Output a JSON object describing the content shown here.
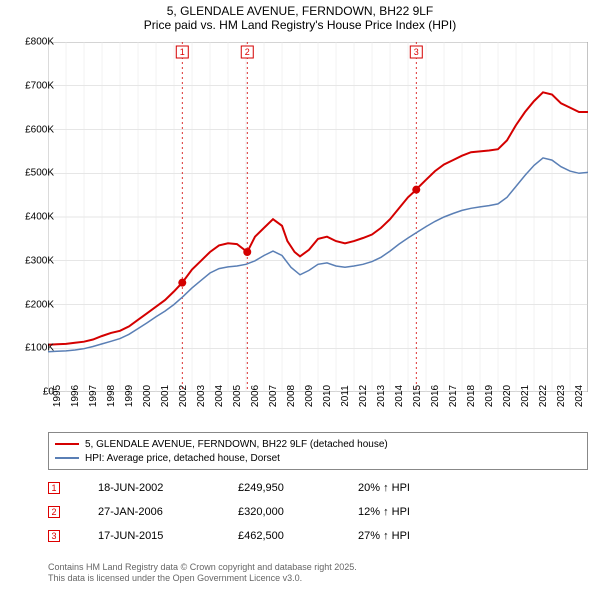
{
  "title_line1": "5, GLENDALE AVENUE, FERNDOWN, BH22 9LF",
  "title_line2": "Price paid vs. HM Land Registry's House Price Index (HPI)",
  "chart": {
    "type": "line",
    "background_color": "#ffffff",
    "plot_border_color": "#888888",
    "grid_color_major": "#cccccc",
    "grid_color_minor": "#e6e6e6",
    "x_min": 1995,
    "x_max": 2025,
    "y_min": 0,
    "y_max": 800000,
    "y_tick_step": 100000,
    "y_tick_labels": [
      "£0",
      "£100K",
      "£200K",
      "£300K",
      "£400K",
      "£500K",
      "£600K",
      "£700K",
      "£800K"
    ],
    "x_ticks": [
      1995,
      1996,
      1997,
      1998,
      1999,
      2000,
      2001,
      2002,
      2003,
      2004,
      2005,
      2006,
      2007,
      2008,
      2009,
      2010,
      2011,
      2012,
      2013,
      2014,
      2015,
      2016,
      2017,
      2018,
      2019,
      2020,
      2021,
      2022,
      2023,
      2024
    ],
    "label_fontsize": 10,
    "series": [
      {
        "name": "5, GLENDALE AVENUE, FERNDOWN, BH22 9LF (detached house)",
        "color": "#d40000",
        "width": 2,
        "data": [
          [
            1995.0,
            108000
          ],
          [
            1995.5,
            109000
          ],
          [
            1996.0,
            110000
          ],
          [
            1996.5,
            112500
          ],
          [
            1997.0,
            115000
          ],
          [
            1997.5,
            120000
          ],
          [
            1998.0,
            128000
          ],
          [
            1998.5,
            135000
          ],
          [
            1999.0,
            140000
          ],
          [
            1999.5,
            150000
          ],
          [
            2000.0,
            165000
          ],
          [
            2000.5,
            180000
          ],
          [
            2001.0,
            195000
          ],
          [
            2001.5,
            210000
          ],
          [
            2002.0,
            230000
          ],
          [
            2002.46,
            249950
          ],
          [
            2003.0,
            280000
          ],
          [
            2003.5,
            300000
          ],
          [
            2004.0,
            320000
          ],
          [
            2004.5,
            335000
          ],
          [
            2005.0,
            340000
          ],
          [
            2005.5,
            338000
          ],
          [
            2006.07,
            320000
          ],
          [
            2006.5,
            355000
          ],
          [
            2007.0,
            375000
          ],
          [
            2007.5,
            395000
          ],
          [
            2008.0,
            380000
          ],
          [
            2008.3,
            345000
          ],
          [
            2008.7,
            320000
          ],
          [
            2009.0,
            310000
          ],
          [
            2009.5,
            325000
          ],
          [
            2010.0,
            350000
          ],
          [
            2010.5,
            355000
          ],
          [
            2011.0,
            345000
          ],
          [
            2011.5,
            340000
          ],
          [
            2012.0,
            345000
          ],
          [
            2012.5,
            352000
          ],
          [
            2013.0,
            360000
          ],
          [
            2013.5,
            375000
          ],
          [
            2014.0,
            395000
          ],
          [
            2014.5,
            420000
          ],
          [
            2015.0,
            445000
          ],
          [
            2015.46,
            462500
          ],
          [
            2015.5,
            465000
          ],
          [
            2016.0,
            485000
          ],
          [
            2016.5,
            505000
          ],
          [
            2017.0,
            520000
          ],
          [
            2017.5,
            530000
          ],
          [
            2018.0,
            540000
          ],
          [
            2018.5,
            548000
          ],
          [
            2019.0,
            550000
          ],
          [
            2019.5,
            552000
          ],
          [
            2020.0,
            555000
          ],
          [
            2020.5,
            575000
          ],
          [
            2021.0,
            610000
          ],
          [
            2021.5,
            640000
          ],
          [
            2022.0,
            665000
          ],
          [
            2022.5,
            685000
          ],
          [
            2023.0,
            680000
          ],
          [
            2023.5,
            660000
          ],
          [
            2024.0,
            650000
          ],
          [
            2024.5,
            640000
          ],
          [
            2025.0,
            640000
          ]
        ]
      },
      {
        "name": "HPI: Average price, detached house, Dorset",
        "color": "#5a7fb5",
        "width": 1.5,
        "data": [
          [
            1995.0,
            92000
          ],
          [
            1995.5,
            93000
          ],
          [
            1996.0,
            94000
          ],
          [
            1996.5,
            96000
          ],
          [
            1997.0,
            99000
          ],
          [
            1997.5,
            104000
          ],
          [
            1998.0,
            110000
          ],
          [
            1998.5,
            116000
          ],
          [
            1999.0,
            122000
          ],
          [
            1999.5,
            132000
          ],
          [
            2000.0,
            145000
          ],
          [
            2000.5,
            158000
          ],
          [
            2001.0,
            172000
          ],
          [
            2001.5,
            185000
          ],
          [
            2002.0,
            200000
          ],
          [
            2002.5,
            218000
          ],
          [
            2003.0,
            238000
          ],
          [
            2003.5,
            255000
          ],
          [
            2004.0,
            272000
          ],
          [
            2004.5,
            282000
          ],
          [
            2005.0,
            286000
          ],
          [
            2005.5,
            288000
          ],
          [
            2006.0,
            292000
          ],
          [
            2006.5,
            300000
          ],
          [
            2007.0,
            312000
          ],
          [
            2007.5,
            322000
          ],
          [
            2008.0,
            312000
          ],
          [
            2008.5,
            285000
          ],
          [
            2009.0,
            268000
          ],
          [
            2009.5,
            278000
          ],
          [
            2010.0,
            292000
          ],
          [
            2010.5,
            295000
          ],
          [
            2011.0,
            288000
          ],
          [
            2011.5,
            285000
          ],
          [
            2012.0,
            288000
          ],
          [
            2012.5,
            292000
          ],
          [
            2013.0,
            298000
          ],
          [
            2013.5,
            308000
          ],
          [
            2014.0,
            322000
          ],
          [
            2014.5,
            338000
          ],
          [
            2015.0,
            352000
          ],
          [
            2015.5,
            365000
          ],
          [
            2016.0,
            378000
          ],
          [
            2016.5,
            390000
          ],
          [
            2017.0,
            400000
          ],
          [
            2017.5,
            408000
          ],
          [
            2018.0,
            415000
          ],
          [
            2018.5,
            420000
          ],
          [
            2019.0,
            423000
          ],
          [
            2019.5,
            426000
          ],
          [
            2020.0,
            430000
          ],
          [
            2020.5,
            445000
          ],
          [
            2021.0,
            470000
          ],
          [
            2021.5,
            495000
          ],
          [
            2022.0,
            518000
          ],
          [
            2022.5,
            535000
          ],
          [
            2023.0,
            530000
          ],
          [
            2023.5,
            515000
          ],
          [
            2024.0,
            505000
          ],
          [
            2024.5,
            500000
          ],
          [
            2025.0,
            502000
          ]
        ]
      }
    ],
    "sale_markers": [
      {
        "n": "1",
        "x": 2002.46,
        "y": 249950
      },
      {
        "n": "2",
        "x": 2006.07,
        "y": 320000
      },
      {
        "n": "3",
        "x": 2015.46,
        "y": 462500
      }
    ],
    "vline_color": "#d40000",
    "vline_dash": "2,3",
    "marker_box_border": "#d40000",
    "marker_dot_fill": "#d40000"
  },
  "legend": [
    {
      "color": "#d40000",
      "label": "5, GLENDALE AVENUE, FERNDOWN, BH22 9LF (detached house)"
    },
    {
      "color": "#5a7fb5",
      "label": "HPI: Average price, detached house, Dorset"
    }
  ],
  "sales": [
    {
      "n": "1",
      "date": "18-JUN-2002",
      "price": "£249,950",
      "pct": "20% ↑ HPI"
    },
    {
      "n": "2",
      "date": "27-JAN-2006",
      "price": "£320,000",
      "pct": "12% ↑ HPI"
    },
    {
      "n": "3",
      "date": "17-JUN-2015",
      "price": "£462,500",
      "pct": "27% ↑ HPI"
    }
  ],
  "footer_line1": "Contains HM Land Registry data © Crown copyright and database right 2025.",
  "footer_line2": "This data is licensed under the Open Government Licence v3.0."
}
